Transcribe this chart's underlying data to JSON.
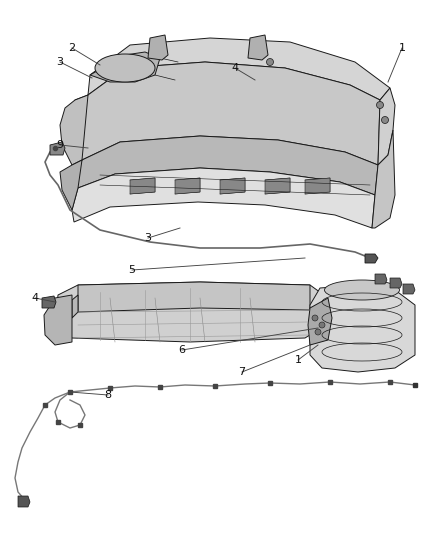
{
  "background_color": "#ffffff",
  "line_color": "#1a1a1a",
  "figure_width": 4.38,
  "figure_height": 5.33,
  "dpi": 100,
  "top_tank": {
    "body_fill": "#d8d8d8",
    "body_fill2": "#c8c8c8",
    "body_fill3": "#e8e8e8"
  },
  "bottom_tank": {
    "body_fill": "#d0d0d0",
    "body_fill2": "#c0c0c0",
    "body_fill3": "#e0e0e0"
  }
}
